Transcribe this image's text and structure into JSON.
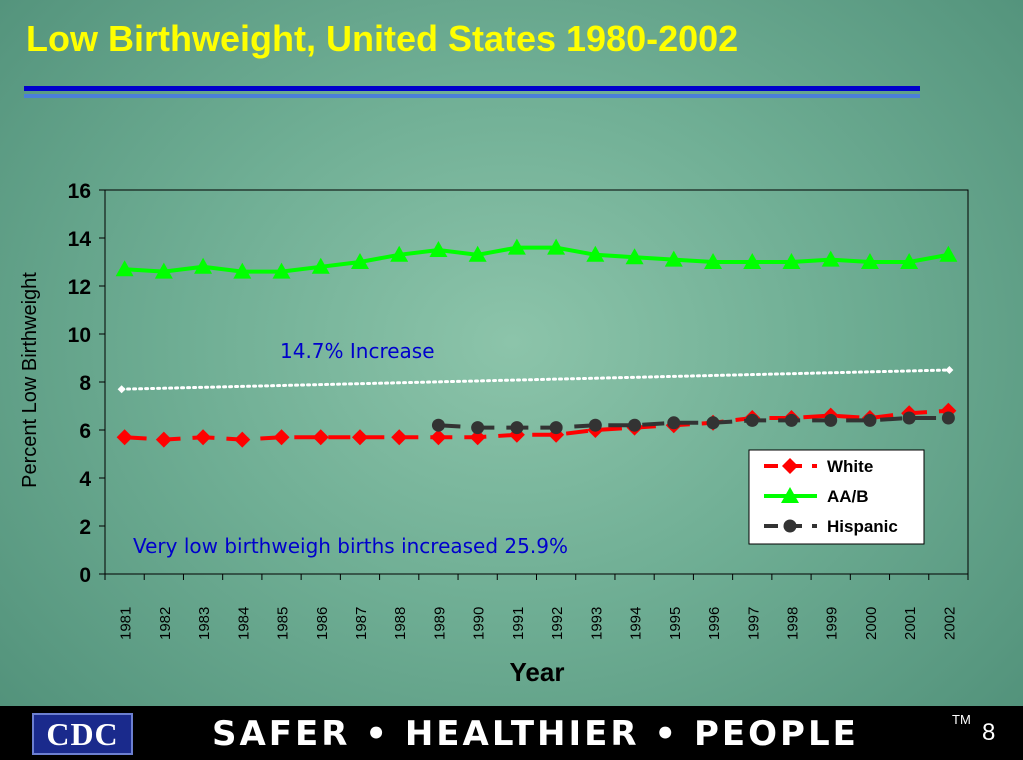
{
  "slide": {
    "title": "Low Birthweight, United States 1980-2002",
    "page_number": "8"
  },
  "footer": {
    "logo_text": "CDC",
    "slogan": "SAFER • HEALTHIER • PEOPLE",
    "trademark": "TM"
  },
  "colors": {
    "title": "#ffff00",
    "white_series": "#ff0000",
    "aab_series": "#00ff00",
    "hispanic_series": "#333333",
    "annotation": "#0000cc"
  },
  "chart_data": {
    "type": "line",
    "xlabel": "Year",
    "ylabel": "Percent Low Birthweight",
    "ylim": [
      0,
      16
    ],
    "yticks": [
      0,
      2,
      4,
      6,
      8,
      10,
      12,
      14,
      16
    ],
    "grid": false,
    "legend_position": "right",
    "categories": [
      "1981",
      "1982",
      "1983",
      "1984",
      "1985",
      "1986",
      "1987",
      "1988",
      "1989",
      "1990",
      "1991",
      "1992",
      "1993",
      "1994",
      "1995",
      "1996",
      "1997",
      "1998",
      "1999",
      "2000",
      "2001",
      "2002"
    ],
    "series": [
      {
        "name": "White",
        "color": "#ff0000",
        "marker": "diamond",
        "dash": "dashed",
        "values": [
          5.7,
          5.6,
          5.7,
          5.6,
          5.7,
          5.7,
          5.7,
          5.7,
          5.7,
          5.7,
          5.8,
          5.8,
          6.0,
          6.1,
          6.2,
          6.3,
          6.5,
          6.5,
          6.6,
          6.5,
          6.7,
          6.8
        ]
      },
      {
        "name": "AA/B",
        "color": "#00ff00",
        "marker": "triangle",
        "dash": "solid",
        "values": [
          12.7,
          12.6,
          12.8,
          12.6,
          12.6,
          12.8,
          13.0,
          13.3,
          13.5,
          13.3,
          13.6,
          13.6,
          13.3,
          13.2,
          13.1,
          13.0,
          13.0,
          13.0,
          13.1,
          13.0,
          13.0,
          13.3
        ]
      },
      {
        "name": "Hispanic",
        "color": "#333333",
        "marker": "circle",
        "dash": "dashed",
        "values": [
          null,
          null,
          null,
          null,
          null,
          null,
          null,
          null,
          6.2,
          6.1,
          6.1,
          6.1,
          6.2,
          6.2,
          6.3,
          6.3,
          6.4,
          6.4,
          6.4,
          6.4,
          6.5,
          6.5
        ]
      }
    ],
    "trend_line": {
      "from_value": 7.7,
      "to_value": 8.5,
      "color": "#ffffff"
    },
    "annotations": [
      "14.7% Increase",
      "Very low birthweigh births increased 25.9%"
    ]
  }
}
